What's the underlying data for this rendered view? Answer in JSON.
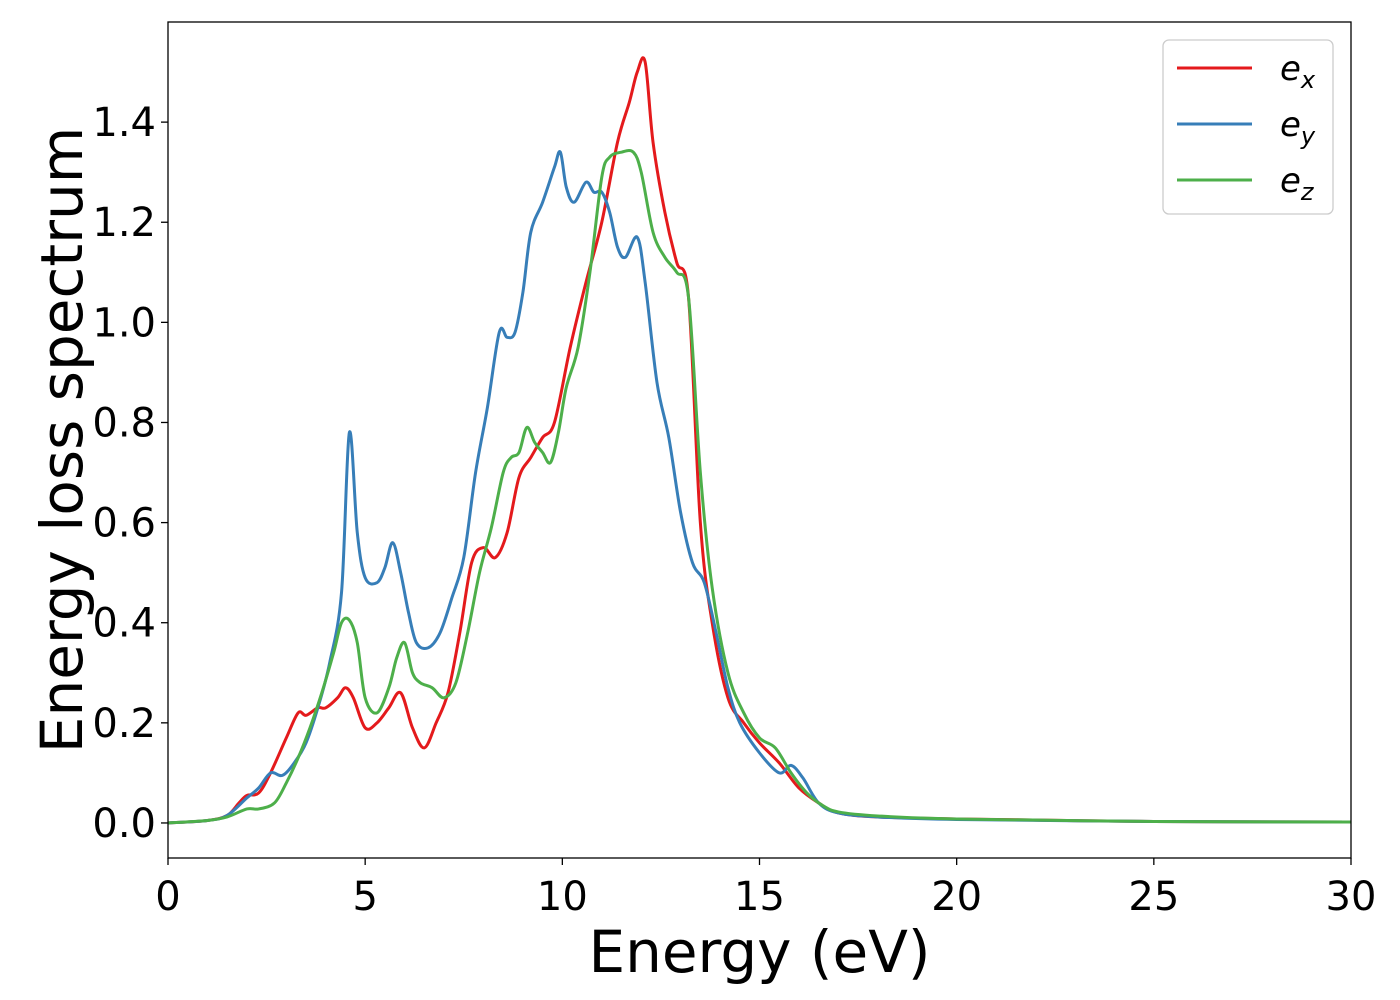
{
  "chart_data": {
    "type": "line",
    "xlabel": "Energy (eV)",
    "ylabel": "Energy loss spectrum",
    "xlim": [
      0,
      30
    ],
    "ylim": [
      -0.07,
      1.6
    ],
    "xticks": [
      0,
      5,
      10,
      15,
      20,
      25,
      30
    ],
    "yticks": [
      0.0,
      0.2,
      0.4,
      0.6,
      0.8,
      1.0,
      1.2,
      1.4
    ],
    "xtick_labels": [
      "0",
      "5",
      "10",
      "15",
      "20",
      "25",
      "30"
    ],
    "ytick_labels": [
      "0.0",
      "0.2",
      "0.4",
      "0.6",
      "0.8",
      "1.0",
      "1.2",
      "1.4"
    ],
    "grid": false,
    "legend_position": "top-right",
    "series": [
      {
        "name": "e_x",
        "label_base": "e",
        "label_sub": "x",
        "color": "#e41a1c",
        "x": [
          0,
          1.0,
          1.5,
          1.8,
          2.0,
          2.3,
          2.6,
          3.0,
          3.3,
          3.5,
          3.8,
          4.0,
          4.3,
          4.5,
          4.7,
          5.0,
          5.3,
          5.6,
          5.9,
          6.2,
          6.5,
          6.8,
          7.1,
          7.4,
          7.7,
          8.0,
          8.3,
          8.6,
          8.9,
          9.2,
          9.5,
          9.8,
          10.2,
          10.6,
          11.0,
          11.4,
          11.7,
          11.9,
          12.1,
          12.3,
          12.6,
          12.9,
          13.2,
          13.5,
          13.8,
          14.2,
          14.6,
          15.0,
          15.5,
          16.0,
          16.5,
          17.0,
          18.0,
          20.0,
          25.0,
          30.0
        ],
        "y": [
          0.0,
          0.005,
          0.015,
          0.04,
          0.055,
          0.06,
          0.1,
          0.17,
          0.22,
          0.215,
          0.23,
          0.23,
          0.25,
          0.27,
          0.25,
          0.19,
          0.2,
          0.23,
          0.26,
          0.19,
          0.15,
          0.2,
          0.26,
          0.38,
          0.52,
          0.55,
          0.53,
          0.58,
          0.69,
          0.73,
          0.77,
          0.8,
          0.95,
          1.08,
          1.2,
          1.36,
          1.44,
          1.5,
          1.52,
          1.36,
          1.22,
          1.12,
          1.05,
          0.6,
          0.4,
          0.25,
          0.2,
          0.16,
          0.12,
          0.07,
          0.04,
          0.02,
          0.012,
          0.008,
          0.003,
          0.002
        ]
      },
      {
        "name": "e_y",
        "label_base": "e",
        "label_sub": "y",
        "color": "#377eb8",
        "x": [
          0,
          1.0,
          1.5,
          2.0,
          2.3,
          2.6,
          2.9,
          3.2,
          3.5,
          3.8,
          4.1,
          4.4,
          4.6,
          4.8,
          5.0,
          5.3,
          5.5,
          5.7,
          5.9,
          6.1,
          6.3,
          6.6,
          6.9,
          7.2,
          7.5,
          7.8,
          8.1,
          8.4,
          8.6,
          8.8,
          9.0,
          9.2,
          9.5,
          9.8,
          9.95,
          10.1,
          10.3,
          10.6,
          10.8,
          11.0,
          11.2,
          11.4,
          11.6,
          11.9,
          12.1,
          12.4,
          12.7,
          13.0,
          13.3,
          13.6,
          13.9,
          14.2,
          14.5,
          15.0,
          15.5,
          15.8,
          16.1,
          16.5,
          17.0,
          18.0,
          20.0,
          25.0,
          30.0
        ],
        "y": [
          0.0,
          0.005,
          0.015,
          0.05,
          0.07,
          0.1,
          0.095,
          0.12,
          0.16,
          0.23,
          0.32,
          0.46,
          0.78,
          0.58,
          0.49,
          0.48,
          0.51,
          0.56,
          0.5,
          0.42,
          0.36,
          0.35,
          0.38,
          0.45,
          0.53,
          0.7,
          0.83,
          0.98,
          0.97,
          0.98,
          1.06,
          1.18,
          1.24,
          1.31,
          1.34,
          1.27,
          1.24,
          1.28,
          1.26,
          1.26,
          1.22,
          1.15,
          1.13,
          1.17,
          1.08,
          0.88,
          0.77,
          0.62,
          0.52,
          0.48,
          0.38,
          0.27,
          0.2,
          0.14,
          0.1,
          0.115,
          0.09,
          0.04,
          0.02,
          0.012,
          0.007,
          0.003,
          0.002
        ]
      },
      {
        "name": "e_z",
        "label_base": "e",
        "label_sub": "z",
        "color": "#4daf4a",
        "x": [
          0,
          1.0,
          1.5,
          2.0,
          2.3,
          2.7,
          3.0,
          3.3,
          3.6,
          3.9,
          4.2,
          4.4,
          4.6,
          4.8,
          5.0,
          5.3,
          5.6,
          5.8,
          6.0,
          6.2,
          6.4,
          6.7,
          7.0,
          7.3,
          7.6,
          7.9,
          8.2,
          8.5,
          8.7,
          8.9,
          9.1,
          9.3,
          9.5,
          9.7,
          9.9,
          10.1,
          10.4,
          10.7,
          11.0,
          11.2,
          11.5,
          11.8,
          12.0,
          12.3,
          12.6,
          12.9,
          13.2,
          13.5,
          13.8,
          14.2,
          14.6,
          15.0,
          15.4,
          15.8,
          16.2,
          16.6,
          17.0,
          18.0,
          20.0,
          25.0,
          30.0
        ],
        "y": [
          0.0,
          0.005,
          0.012,
          0.028,
          0.028,
          0.04,
          0.08,
          0.13,
          0.19,
          0.26,
          0.34,
          0.4,
          0.405,
          0.36,
          0.25,
          0.22,
          0.27,
          0.33,
          0.36,
          0.3,
          0.28,
          0.27,
          0.25,
          0.28,
          0.38,
          0.5,
          0.59,
          0.7,
          0.73,
          0.74,
          0.79,
          0.76,
          0.74,
          0.72,
          0.78,
          0.87,
          0.95,
          1.1,
          1.29,
          1.33,
          1.34,
          1.34,
          1.3,
          1.18,
          1.13,
          1.1,
          1.05,
          0.7,
          0.47,
          0.3,
          0.22,
          0.17,
          0.15,
          0.1,
          0.06,
          0.035,
          0.022,
          0.014,
          0.008,
          0.003,
          0.002
        ]
      }
    ]
  }
}
